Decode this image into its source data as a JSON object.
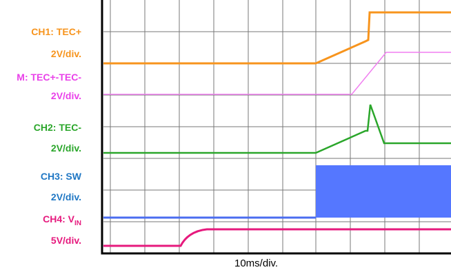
{
  "labels": [
    {
      "text": "CH1: TEC+",
      "color": "#f7941d"
    },
    {
      "text": "2V/div.",
      "color": "#f7941d"
    },
    {
      "text": "M: TEC+-TEC-",
      "color": "#e940e9"
    },
    {
      "text": "2V/div.",
      "color": "#e940e9"
    },
    {
      "text": "CH2: TEC-",
      "color": "#2aa62a"
    },
    {
      "text": "2V/div.",
      "color": "#2aa62a"
    },
    {
      "text": "CH3: SW",
      "color": "#1f77c4"
    },
    {
      "text": "2V/div.",
      "color": "#1f77c4"
    },
    {
      "text": "CH4: V",
      "sub": "IN",
      "color": "#e6197d"
    },
    {
      "text": "5V/div.",
      "color": "#e6197d"
    }
  ],
  "x_label": "10ms/div."
}
